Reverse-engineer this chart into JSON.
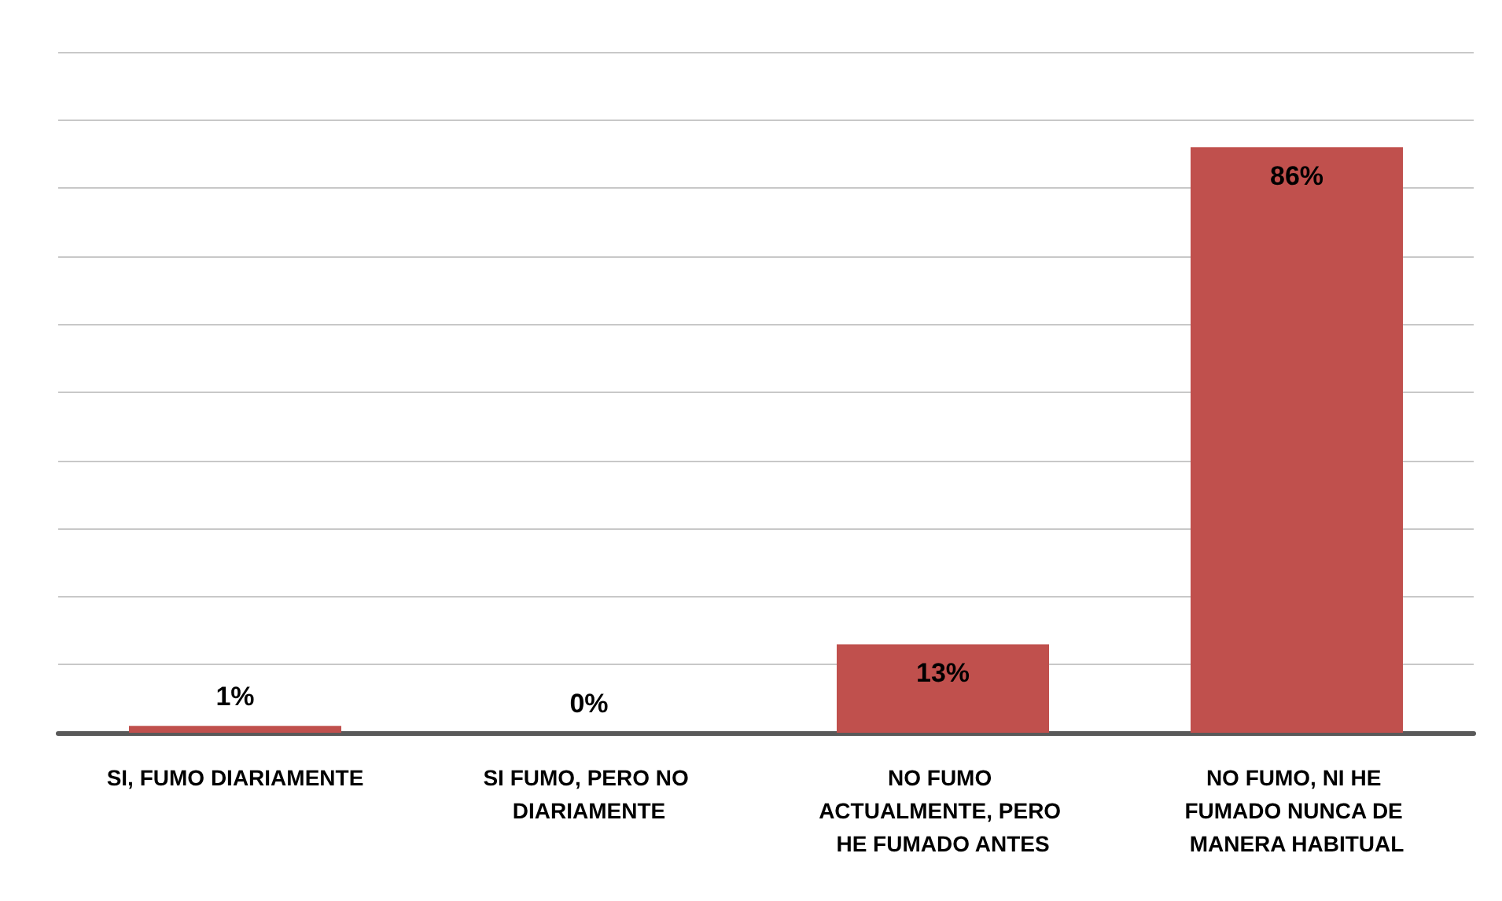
{
  "chart_data": {
    "type": "bar",
    "categories": [
      "SI, FUMO DIARIAMENTE",
      "SI FUMO, PERO NO DIARIAMENTE",
      "NO FUMO ACTUALMENTE, PERO HE FUMADO ANTES",
      "NO FUMO, NI HE FUMADO NUNCA DE MANERA HABITUAL"
    ],
    "values": [
      1,
      0,
      13,
      86
    ],
    "value_labels": [
      "1%",
      "0%",
      "13%",
      "86%"
    ],
    "color": "#c0504d",
    "ylim": [
      0,
      100
    ],
    "yticks": [
      {
        "value": 0,
        "label": null
      },
      {
        "value": 10,
        "label": null
      },
      {
        "value": 20,
        "label": null
      },
      {
        "value": 30,
        "label": null
      },
      {
        "value": 40,
        "label": null
      },
      {
        "value": 50,
        "label": null
      },
      {
        "value": 60,
        "label": null
      },
      {
        "value": 70,
        "label": null
      },
      {
        "value": 80,
        "label": null
      },
      {
        "value": 90,
        "label": null
      },
      {
        "value": 100,
        "label": null
      }
    ],
    "tick_labels": "x",
    "grid": "y"
  }
}
